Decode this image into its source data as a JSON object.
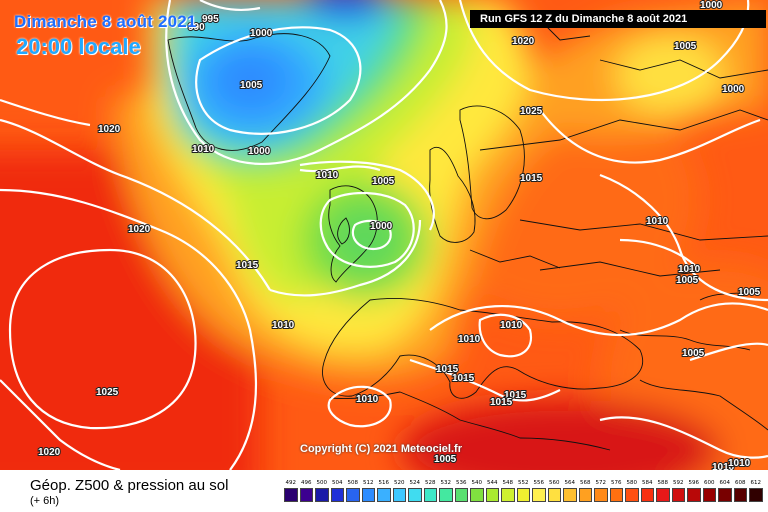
{
  "title": {
    "date": "Dimanche 8 août 2021",
    "time": "20:00 locale"
  },
  "run_info": "Run GFS 12 Z du Dimanche 8 août 2021",
  "copyright": "Copyright (C) 2021 Meteociel.fr",
  "parameter": "Géop. Z500 & pression au sol",
  "offset": "(+ 6h)",
  "isobar_labels": [
    "990",
    "995",
    "1000",
    "1005",
    "1010",
    "1015",
    "1020",
    "1025"
  ],
  "scale": {
    "labels": [
      "492",
      "496",
      "500",
      "504",
      "508",
      "512",
      "516",
      "520",
      "524",
      "528",
      "532",
      "536",
      "540",
      "544",
      "548",
      "552",
      "556",
      "560",
      "564",
      "568",
      "572",
      "576",
      "580",
      "584",
      "588",
      "592",
      "596",
      "600",
      "604",
      "608",
      "612"
    ],
    "colors": [
      "#2a0070",
      "#3c0090",
      "#1a1aa8",
      "#1f2fd8",
      "#2864f0",
      "#2d8cff",
      "#3ab0ff",
      "#3ec8ff",
      "#40dcf0",
      "#3ee8c8",
      "#44e8a0",
      "#58e070",
      "#80e040",
      "#aaea30",
      "#cff030",
      "#f0f030",
      "#fff050",
      "#ffe040",
      "#ffc030",
      "#ffa020",
      "#ff8a18",
      "#ff7010",
      "#ff5010",
      "#f83010",
      "#e81818",
      "#d01010",
      "#b80808",
      "#980000",
      "#780000",
      "#580000",
      "#300000"
    ]
  }
}
